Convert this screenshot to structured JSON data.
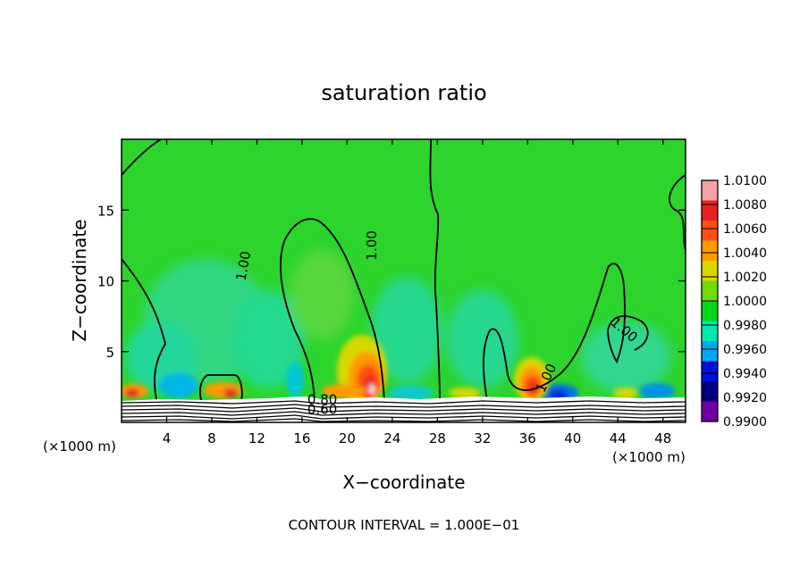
{
  "chart_data": {
    "type": "heatmap",
    "title": "saturation ratio",
    "xlabel": "X−coordinate",
    "ylabel": "Z−coordinate",
    "x_unit_left": "(×1000 m)",
    "x_unit_right": "(×1000 m)",
    "xlim": [
      0,
      50
    ],
    "ylim": [
      0,
      20
    ],
    "x_ticks": [
      4,
      8,
      12,
      16,
      20,
      24,
      28,
      32,
      36,
      40,
      44,
      48
    ],
    "y_ticks": [
      5,
      10,
      15
    ],
    "footer": "CONTOUR INTERVAL = 1.000E−01",
    "colorbar": {
      "levels": [
        "1.0100",
        "1.0080",
        "1.0060",
        "1.0040",
        "1.0020",
        "1.0000",
        "0.9980",
        "0.9960",
        "0.9940",
        "0.9920",
        "0.9900"
      ],
      "colors": [
        "#f8a0a8",
        "#e82020",
        "#ff5010",
        "#ff9a00",
        "#d8d800",
        "#70dc00",
        "#00d818",
        "#00e8b0",
        "#00a8f0",
        "#0010d8",
        "#000080",
        "#7000a0"
      ]
    },
    "contour_labels": [
      {
        "text": "1.00",
        "x": 11.2,
        "y": 11.0,
        "rotate": -80
      },
      {
        "text": "1.00",
        "x": 22.6,
        "y": 12.5,
        "rotate": -90
      },
      {
        "text": "1.00",
        "x": 44.3,
        "y": 6.3,
        "rotate": 40
      },
      {
        "text": "1.00",
        "x": 38.0,
        "y": 3.0,
        "rotate": -65
      },
      {
        "text": "0.80",
        "x": 17.8,
        "y": 1.3,
        "rotate": 0
      },
      {
        "text": "0.60",
        "x": 17.8,
        "y": 0.6,
        "rotate": 0
      }
    ],
    "field": {
      "base": "1.0000",
      "warm_plumes": [
        {
          "x": 21.8,
          "z": 2.5,
          "amp": 0.009
        },
        {
          "x": 36.3,
          "z": 2.6,
          "amp": 0.009
        }
      ],
      "cool_plumes": [
        {
          "x": 5.0,
          "z": 2.0,
          "amp": -0.007
        },
        {
          "x": 19.0,
          "z": 3.0,
          "amp": -0.004
        },
        {
          "x": 39.0,
          "z": 1.8,
          "amp": -0.008
        }
      ]
    },
    "contours_1_00": [
      {
        "x": [
          0,
          1.5,
          2.5,
          3.2,
          3.5,
          3.2,
          3.0
        ]
      },
      {
        "x": [
          13.0,
          15.5,
          16.5
        ]
      },
      {
        "x": [
          26.5,
          27.5
        ]
      }
    ]
  }
}
